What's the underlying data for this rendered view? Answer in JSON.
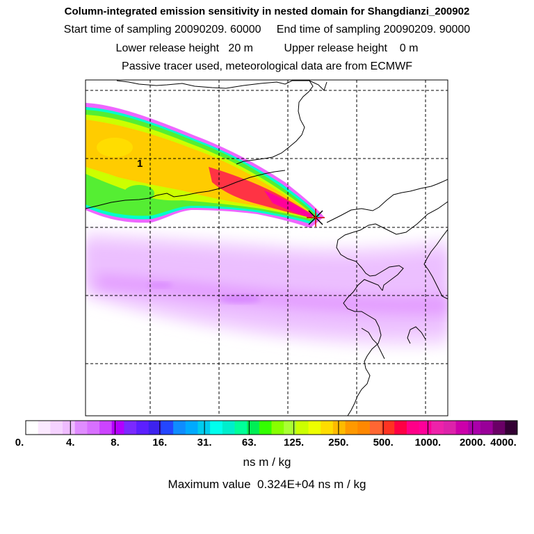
{
  "header": {
    "title": "Column-integrated emission sensitivity in nested domain for Shangdianzi_200902",
    "sampling_line": "Start time of sampling 20090209. 60000     End time of sampling 20090209. 90000",
    "release_line": "Lower release height   20 m          Upper release height    0 m",
    "tracer_line": "Passive tracer used, meteorological data are from ECMWF"
  },
  "map": {
    "grid_label": "1",
    "release_marker_icon": "star-cross-icon",
    "plume_colors": [
      "#ee66ff",
      "#00ffcc",
      "#55ee33",
      "#ccff00",
      "#ffcc00",
      "#ff3344",
      "#ff0099"
    ]
  },
  "colorbar": {
    "colors": [
      "#ffffff",
      "#fbe9ff",
      "#f5d2ff",
      "#efbcff",
      "#e08cff",
      "#d870ff",
      "#cc44ff",
      "#b300ff",
      "#7b29ff",
      "#5c1fff",
      "#3d22ee",
      "#2446ff",
      "#0f8cff",
      "#00aaff",
      "#00ccee",
      "#00ffee",
      "#00eecc",
      "#00ff99",
      "#00ee55",
      "#33ff00",
      "#88ff00",
      "#aaff33",
      "#ccff00",
      "#eeff00",
      "#ffdd00",
      "#ffbb00",
      "#ff9900",
      "#ff8800",
      "#ff6633",
      "#ff3322",
      "#ff0044",
      "#ff0088",
      "#ff0099",
      "#ee22aa",
      "#dd22aa",
      "#cc00aa",
      "#aa00aa",
      "#990099",
      "#6a0066",
      "#330033"
    ],
    "tick_labels": [
      "0.",
      "4.",
      "8.",
      "16.",
      "31.",
      "63.",
      "125.",
      "250.",
      "500.",
      "1000.",
      "2000.",
      "4000."
    ],
    "unit": "ns m / kg"
  },
  "footer": {
    "max_value": "Maximum value  0.324E+04 ns m / kg"
  }
}
